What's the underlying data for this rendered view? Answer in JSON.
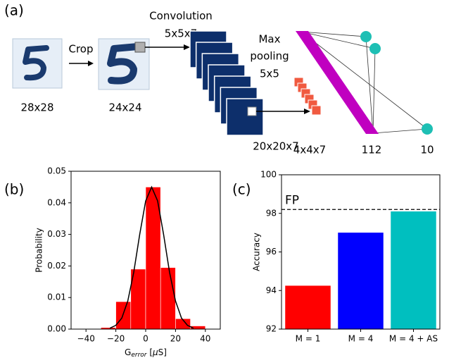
{
  "diagram": {
    "panel_label": "(a)",
    "crop": "Crop",
    "input_size": "28x28",
    "crop_size": "24x24",
    "conv_title": "Convolution",
    "conv_kernel": "5x5x7",
    "pool_title_1": "Max",
    "pool_title_2": "pooling",
    "pool_kernel": "5x5",
    "conv_size": "20x20x7",
    "pool_size": "4x4x7",
    "hidden_size": "112",
    "output_size": "10"
  },
  "chart_data": [
    {
      "type": "histogram",
      "panel_label": "(b)",
      "bins": [
        -30,
        -20,
        -10,
        0,
        10,
        20,
        30,
        40
      ],
      "values": [
        0.0005,
        0.0087,
        0.019,
        0.045,
        0.0195,
        0.0033,
        0.001
      ],
      "color": "#ff0000",
      "fit": {
        "x": [
          -24,
          -20,
          -16,
          -12,
          -8,
          -4,
          0,
          4,
          8,
          12,
          16,
          20,
          24,
          28,
          32
        ],
        "values": [
          0.0003,
          0.0012,
          0.0035,
          0.0089,
          0.018,
          0.03,
          0.0406,
          0.045,
          0.0406,
          0.03,
          0.018,
          0.0089,
          0.0035,
          0.0012,
          0.0003
        ],
        "color": "#000000"
      },
      "xlim": [
        -50,
        50
      ],
      "xticks": [
        {
          "value": -40,
          "label": "−40"
        },
        {
          "value": -20,
          "label": "−20"
        },
        0,
        20,
        40
      ],
      "ylim": [
        0,
        0.05
      ],
      "yticks": [
        {
          "value": 0,
          "label": "0.00"
        },
        0.01,
        0.02,
        0.03,
        0.04,
        0.05
      ],
      "xlabel": {
        "base": "G",
        "sub": "error",
        "unit_open": " [",
        "unit_mu": "µ",
        "unit_close": "S]"
      },
      "ylabel": "Probability"
    },
    {
      "type": "bar",
      "panel_label": "(c)",
      "categories": [
        "M = 1",
        "M = 4",
        "M = 4 + AS"
      ],
      "values": [
        94.25,
        97.0,
        98.1
      ],
      "colors": [
        "#ff0000",
        "#0000ff",
        "#00bfbf"
      ],
      "ylim": [
        92,
        100
      ],
      "yticks": [
        92,
        94,
        96,
        98,
        100
      ],
      "ylabel": "Accuracy",
      "reference": {
        "label": "FP",
        "value": 98.2
      }
    }
  ]
}
